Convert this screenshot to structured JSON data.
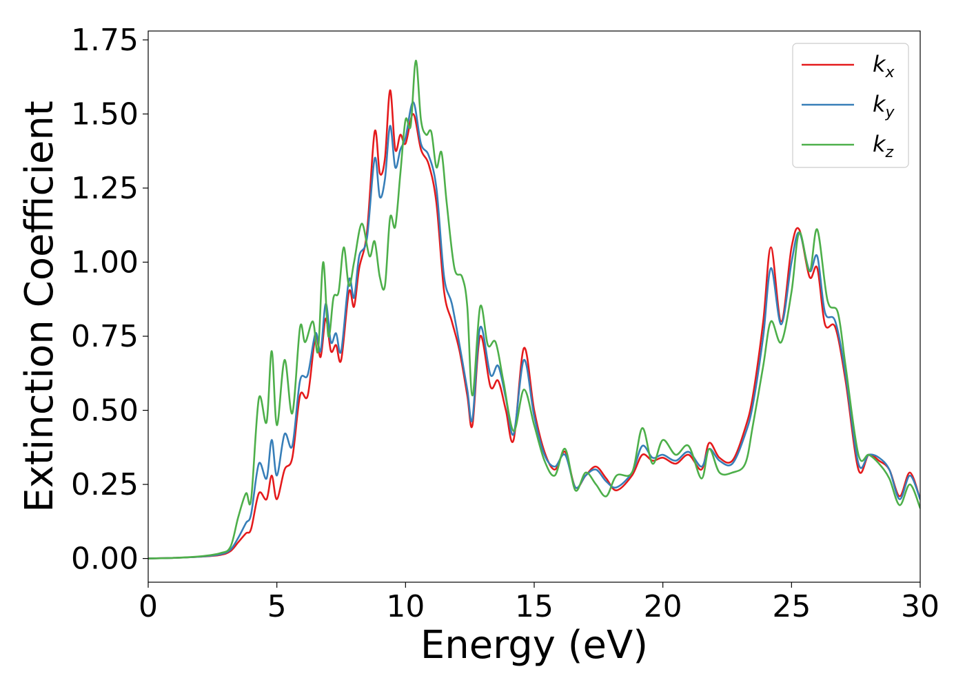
{
  "chart_data": {
    "type": "line",
    "xlabel": "Energy (eV)",
    "ylabel": "Extinction Coefficient",
    "xlim": [
      0,
      30
    ],
    "ylim": [
      -0.08,
      1.78
    ],
    "xticks": [
      0,
      5,
      10,
      15,
      20,
      25,
      30
    ],
    "xtick_labels": [
      "0",
      "5",
      "10",
      "15",
      "20",
      "25",
      "30"
    ],
    "yticks": [
      0.0,
      0.25,
      0.5,
      0.75,
      1.0,
      1.25,
      1.5,
      1.75
    ],
    "ytick_labels": [
      "0.00",
      "0.25",
      "0.50",
      "0.75",
      "1.00",
      "1.25",
      "1.50",
      "1.75"
    ],
    "grid": false,
    "legend_position": "top-right",
    "series": [
      {
        "name": "k",
        "subscript": "x",
        "color": "#e41a1c",
        "points": [
          [
            0,
            0
          ],
          [
            1,
            0.002
          ],
          [
            2,
            0.006
          ],
          [
            2.8,
            0.012
          ],
          [
            3.2,
            0.025
          ],
          [
            3.5,
            0.055
          ],
          [
            3.8,
            0.085
          ],
          [
            4.0,
            0.1
          ],
          [
            4.3,
            0.22
          ],
          [
            4.6,
            0.2
          ],
          [
            4.8,
            0.28
          ],
          [
            5.0,
            0.2
          ],
          [
            5.3,
            0.3
          ],
          [
            5.6,
            0.34
          ],
          [
            5.9,
            0.55
          ],
          [
            6.2,
            0.55
          ],
          [
            6.5,
            0.75
          ],
          [
            6.7,
            0.68
          ],
          [
            6.9,
            0.81
          ],
          [
            7.1,
            0.7
          ],
          [
            7.3,
            0.72
          ],
          [
            7.5,
            0.67
          ],
          [
            7.8,
            0.9
          ],
          [
            8.0,
            0.85
          ],
          [
            8.2,
            0.98
          ],
          [
            8.5,
            1.1
          ],
          [
            8.8,
            1.44
          ],
          [
            9.0,
            1.3
          ],
          [
            9.2,
            1.35
          ],
          [
            9.4,
            1.58
          ],
          [
            9.6,
            1.38
          ],
          [
            9.8,
            1.43
          ],
          [
            10.0,
            1.4
          ],
          [
            10.3,
            1.5
          ],
          [
            10.6,
            1.38
          ],
          [
            10.9,
            1.33
          ],
          [
            11.2,
            1.2
          ],
          [
            11.5,
            0.9
          ],
          [
            11.8,
            0.8
          ],
          [
            12.1,
            0.7
          ],
          [
            12.4,
            0.55
          ],
          [
            12.6,
            0.45
          ],
          [
            12.9,
            0.75
          ],
          [
            13.3,
            0.58
          ],
          [
            13.6,
            0.6
          ],
          [
            13.9,
            0.5
          ],
          [
            14.2,
            0.4
          ],
          [
            14.6,
            0.71
          ],
          [
            15.0,
            0.5
          ],
          [
            15.4,
            0.36
          ],
          [
            15.8,
            0.3
          ],
          [
            16.2,
            0.36
          ],
          [
            16.6,
            0.24
          ],
          [
            17.0,
            0.28
          ],
          [
            17.4,
            0.31
          ],
          [
            17.8,
            0.27
          ],
          [
            18.2,
            0.23
          ],
          [
            18.8,
            0.28
          ],
          [
            19.2,
            0.35
          ],
          [
            19.6,
            0.33
          ],
          [
            20.0,
            0.34
          ],
          [
            20.5,
            0.32
          ],
          [
            21.0,
            0.35
          ],
          [
            21.5,
            0.3
          ],
          [
            21.8,
            0.39
          ],
          [
            22.2,
            0.34
          ],
          [
            22.7,
            0.33
          ],
          [
            23.2,
            0.44
          ],
          [
            23.5,
            0.55
          ],
          [
            23.9,
            0.8
          ],
          [
            24.2,
            1.05
          ],
          [
            24.6,
            0.8
          ],
          [
            25.0,
            1.05
          ],
          [
            25.3,
            1.11
          ],
          [
            25.7,
            0.95
          ],
          [
            26.0,
            0.98
          ],
          [
            26.3,
            0.79
          ],
          [
            26.7,
            0.78
          ],
          [
            27.1,
            0.6
          ],
          [
            27.6,
            0.3
          ],
          [
            28.0,
            0.35
          ],
          [
            28.4,
            0.33
          ],
          [
            28.8,
            0.3
          ],
          [
            29.2,
            0.21
          ],
          [
            29.6,
            0.29
          ],
          [
            30.0,
            0.2
          ]
        ]
      },
      {
        "name": "k",
        "subscript": "y",
        "color": "#377eb8",
        "points": [
          [
            0,
            0
          ],
          [
            1,
            0.002
          ],
          [
            2,
            0.006
          ],
          [
            2.8,
            0.014
          ],
          [
            3.2,
            0.03
          ],
          [
            3.5,
            0.07
          ],
          [
            3.8,
            0.12
          ],
          [
            4.0,
            0.15
          ],
          [
            4.3,
            0.32
          ],
          [
            4.6,
            0.27
          ],
          [
            4.8,
            0.4
          ],
          [
            5.0,
            0.28
          ],
          [
            5.3,
            0.42
          ],
          [
            5.6,
            0.38
          ],
          [
            5.9,
            0.6
          ],
          [
            6.2,
            0.62
          ],
          [
            6.5,
            0.76
          ],
          [
            6.7,
            0.7
          ],
          [
            6.9,
            0.86
          ],
          [
            7.1,
            0.73
          ],
          [
            7.3,
            0.76
          ],
          [
            7.5,
            0.7
          ],
          [
            7.8,
            0.94
          ],
          [
            8.0,
            0.88
          ],
          [
            8.2,
            1.02
          ],
          [
            8.5,
            1.08
          ],
          [
            8.8,
            1.35
          ],
          [
            9.0,
            1.22
          ],
          [
            9.2,
            1.28
          ],
          [
            9.4,
            1.46
          ],
          [
            9.6,
            1.32
          ],
          [
            9.8,
            1.38
          ],
          [
            10.0,
            1.42
          ],
          [
            10.3,
            1.54
          ],
          [
            10.6,
            1.4
          ],
          [
            10.9,
            1.36
          ],
          [
            11.2,
            1.25
          ],
          [
            11.5,
            0.95
          ],
          [
            11.8,
            0.86
          ],
          [
            12.1,
            0.72
          ],
          [
            12.4,
            0.57
          ],
          [
            12.6,
            0.47
          ],
          [
            12.9,
            0.78
          ],
          [
            13.3,
            0.62
          ],
          [
            13.6,
            0.65
          ],
          [
            13.9,
            0.54
          ],
          [
            14.2,
            0.42
          ],
          [
            14.6,
            0.67
          ],
          [
            15.0,
            0.48
          ],
          [
            15.4,
            0.35
          ],
          [
            15.8,
            0.31
          ],
          [
            16.2,
            0.35
          ],
          [
            16.6,
            0.24
          ],
          [
            17.0,
            0.28
          ],
          [
            17.4,
            0.3
          ],
          [
            17.8,
            0.26
          ],
          [
            18.2,
            0.24
          ],
          [
            18.8,
            0.29
          ],
          [
            19.2,
            0.38
          ],
          [
            19.6,
            0.34
          ],
          [
            20.0,
            0.35
          ],
          [
            20.5,
            0.33
          ],
          [
            21.0,
            0.36
          ],
          [
            21.5,
            0.31
          ],
          [
            21.8,
            0.37
          ],
          [
            22.2,
            0.33
          ],
          [
            22.7,
            0.32
          ],
          [
            23.2,
            0.42
          ],
          [
            23.5,
            0.52
          ],
          [
            23.9,
            0.75
          ],
          [
            24.2,
            0.98
          ],
          [
            24.6,
            0.79
          ],
          [
            25.0,
            1.0
          ],
          [
            25.3,
            1.1
          ],
          [
            25.7,
            0.97
          ],
          [
            26.0,
            1.02
          ],
          [
            26.3,
            0.83
          ],
          [
            26.7,
            0.8
          ],
          [
            27.1,
            0.62
          ],
          [
            27.6,
            0.32
          ],
          [
            28.0,
            0.35
          ],
          [
            28.4,
            0.34
          ],
          [
            28.8,
            0.3
          ],
          [
            29.2,
            0.2
          ],
          [
            29.6,
            0.28
          ],
          [
            30.0,
            0.2
          ]
        ]
      },
      {
        "name": "k",
        "subscript": "z",
        "color": "#4daf4a",
        "points": [
          [
            0,
            0
          ],
          [
            1,
            0.002
          ],
          [
            2,
            0.007
          ],
          [
            2.8,
            0.018
          ],
          [
            3.2,
            0.04
          ],
          [
            3.5,
            0.14
          ],
          [
            3.8,
            0.22
          ],
          [
            4.0,
            0.2
          ],
          [
            4.3,
            0.54
          ],
          [
            4.6,
            0.46
          ],
          [
            4.8,
            0.7
          ],
          [
            5.0,
            0.45
          ],
          [
            5.3,
            0.67
          ],
          [
            5.6,
            0.49
          ],
          [
            5.9,
            0.78
          ],
          [
            6.1,
            0.73
          ],
          [
            6.4,
            0.8
          ],
          [
            6.6,
            0.7
          ],
          [
            6.8,
            1.0
          ],
          [
            7.0,
            0.75
          ],
          [
            7.2,
            0.88
          ],
          [
            7.4,
            0.9
          ],
          [
            7.6,
            1.05
          ],
          [
            7.8,
            0.92
          ],
          [
            8.0,
            1.0
          ],
          [
            8.3,
            1.13
          ],
          [
            8.6,
            1.02
          ],
          [
            8.8,
            1.07
          ],
          [
            9.0,
            0.95
          ],
          [
            9.2,
            0.92
          ],
          [
            9.4,
            1.15
          ],
          [
            9.6,
            1.12
          ],
          [
            9.8,
            1.3
          ],
          [
            10.0,
            1.48
          ],
          [
            10.2,
            1.46
          ],
          [
            10.4,
            1.68
          ],
          [
            10.6,
            1.48
          ],
          [
            10.8,
            1.43
          ],
          [
            11.0,
            1.44
          ],
          [
            11.2,
            1.32
          ],
          [
            11.4,
            1.37
          ],
          [
            11.6,
            1.2
          ],
          [
            11.9,
            0.98
          ],
          [
            12.2,
            0.95
          ],
          [
            12.4,
            0.85
          ],
          [
            12.6,
            0.55
          ],
          [
            12.9,
            0.85
          ],
          [
            13.2,
            0.72
          ],
          [
            13.5,
            0.73
          ],
          [
            13.8,
            0.6
          ],
          [
            14.2,
            0.43
          ],
          [
            14.6,
            0.57
          ],
          [
            15.0,
            0.45
          ],
          [
            15.4,
            0.33
          ],
          [
            15.8,
            0.28
          ],
          [
            16.2,
            0.37
          ],
          [
            16.6,
            0.23
          ],
          [
            17.0,
            0.29
          ],
          [
            17.4,
            0.25
          ],
          [
            17.8,
            0.21
          ],
          [
            18.2,
            0.28
          ],
          [
            18.8,
            0.29
          ],
          [
            19.2,
            0.44
          ],
          [
            19.6,
            0.32
          ],
          [
            20.0,
            0.4
          ],
          [
            20.5,
            0.35
          ],
          [
            21.0,
            0.38
          ],
          [
            21.5,
            0.27
          ],
          [
            21.8,
            0.37
          ],
          [
            22.2,
            0.29
          ],
          [
            22.7,
            0.29
          ],
          [
            23.2,
            0.32
          ],
          [
            23.5,
            0.45
          ],
          [
            23.9,
            0.65
          ],
          [
            24.2,
            0.8
          ],
          [
            24.6,
            0.73
          ],
          [
            25.0,
            0.9
          ],
          [
            25.3,
            1.1
          ],
          [
            25.7,
            0.97
          ],
          [
            26.0,
            1.11
          ],
          [
            26.4,
            0.87
          ],
          [
            26.8,
            0.83
          ],
          [
            27.1,
            0.65
          ],
          [
            27.6,
            0.35
          ],
          [
            28.0,
            0.35
          ],
          [
            28.4,
            0.32
          ],
          [
            28.8,
            0.27
          ],
          [
            29.2,
            0.18
          ],
          [
            29.6,
            0.25
          ],
          [
            30.0,
            0.17
          ]
        ]
      }
    ]
  }
}
